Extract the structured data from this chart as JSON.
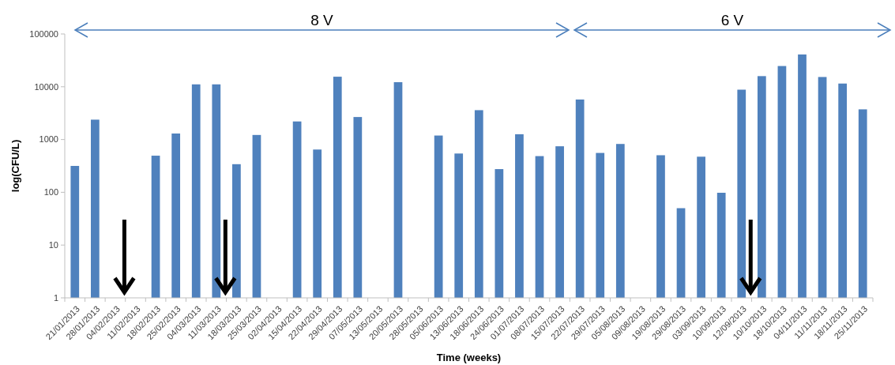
{
  "chart_data": {
    "type": "bar",
    "xlabel": "Time (weeks)",
    "ylabel": "log(CFU/L)",
    "categories": [
      "21/01/2013",
      "28/01/2013",
      "04/02/2013",
      "11/02/2013",
      "18/02/2013",
      "25/02/2013",
      "04/03/2013",
      "11/03/2013",
      "18/03/2013",
      "25/03/2013",
      "02/04/2013",
      "15/04/2013",
      "22/04/2013",
      "29/04/2013",
      "07/05/2013",
      "13/05/2013",
      "20/05/2013",
      "28/05/2013",
      "05/06/2013",
      "13/06/2013",
      "18/06/2013",
      "24/06/2013",
      "01/07/2013",
      "08/07/2013",
      "15/07/2013",
      "22/07/2013",
      "29/07/2013",
      "05/08/2013",
      "09/08/2013",
      "19/08/2013",
      "29/08/2013",
      "03/09/2013",
      "10/09/2013",
      "12/09/2013",
      "10/10/2013",
      "18/10/2013",
      "04/11/2013",
      "11/11/2013",
      "18/11/2013",
      "25/11/2013"
    ],
    "values": [
      316,
      2380,
      null,
      null,
      494,
      1300,
      11100,
      11100,
      341,
      1220,
      null,
      2200,
      646,
      15500,
      2670,
      null,
      12200,
      null,
      1190,
      543,
      3600,
      275,
      1260,
      485,
      745,
      5730,
      557,
      824,
      null,
      504,
      50,
      473,
      98,
      8800,
      15900,
      24700,
      40900,
      15300,
      11500,
      3730
    ],
    "color": "#4f81bd",
    "log": "y",
    "ylim": [
      1,
      100000
    ],
    "yticks": [
      1,
      10,
      100,
      1000,
      10000,
      100000
    ],
    "grid": false,
    "annotations": [
      "8 V",
      "6 V"
    ]
  }
}
